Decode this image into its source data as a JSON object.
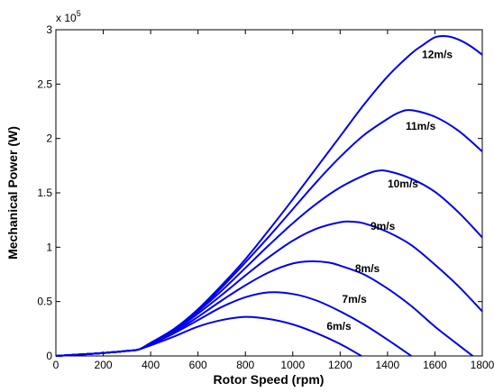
{
  "chart_data": {
    "type": "line",
    "xlabel": "Rotor Speed (rpm)",
    "ylabel": "Mechanical Power (W)",
    "y_multiplier_base": "x 10",
    "y_multiplier_exp": "5",
    "xlim": [
      0,
      1800
    ],
    "ylim": [
      0,
      3
    ],
    "x_ticks": [
      0,
      200,
      400,
      600,
      800,
      1000,
      1200,
      1400,
      1600,
      1800
    ],
    "y_ticks": [
      0,
      0.5,
      1,
      1.5,
      2,
      2.5,
      3
    ],
    "y_tick_labels": [
      "0",
      "0.5",
      "1",
      "1.5",
      "2",
      "2.5",
      "3"
    ],
    "grid": false,
    "line_color": "#0000ee",
    "series": [
      {
        "name": "6m/s",
        "label_at": [
          1195,
          0.24
        ],
        "points": [
          [
            0,
            0
          ],
          [
            100,
            0.013
          ],
          [
            200,
            0.027
          ],
          [
            300,
            0.046
          ],
          [
            350,
            0.06
          ],
          [
            400,
            0.097
          ],
          [
            500,
            0.18
          ],
          [
            600,
            0.27
          ],
          [
            700,
            0.33
          ],
          [
            800,
            0.36
          ],
          [
            900,
            0.34
          ],
          [
            1000,
            0.29
          ],
          [
            1100,
            0.21
          ],
          [
            1200,
            0.11
          ],
          [
            1290,
            0
          ]
        ]
      },
      {
        "name": "7m/s",
        "label_at": [
          1260,
          0.49
        ],
        "points": [
          [
            0,
            0
          ],
          [
            100,
            0.013
          ],
          [
            200,
            0.027
          ],
          [
            300,
            0.046
          ],
          [
            350,
            0.06
          ],
          [
            400,
            0.105
          ],
          [
            500,
            0.21
          ],
          [
            600,
            0.33
          ],
          [
            700,
            0.45
          ],
          [
            800,
            0.54
          ],
          [
            900,
            0.585
          ],
          [
            1000,
            0.57
          ],
          [
            1100,
            0.51
          ],
          [
            1200,
            0.41
          ],
          [
            1300,
            0.29
          ],
          [
            1400,
            0.15
          ],
          [
            1500,
            0
          ]
        ]
      },
      {
        "name": "8m/s",
        "label_at": [
          1315,
          0.77
        ],
        "points": [
          [
            0,
            0
          ],
          [
            100,
            0.013
          ],
          [
            200,
            0.027
          ],
          [
            300,
            0.046
          ],
          [
            350,
            0.06
          ],
          [
            400,
            0.11
          ],
          [
            500,
            0.22
          ],
          [
            600,
            0.36
          ],
          [
            700,
            0.51
          ],
          [
            800,
            0.65
          ],
          [
            900,
            0.77
          ],
          [
            1000,
            0.85
          ],
          [
            1075,
            0.87
          ],
          [
            1150,
            0.86
          ],
          [
            1200,
            0.83
          ],
          [
            1300,
            0.75
          ],
          [
            1400,
            0.62
          ],
          [
            1500,
            0.46
          ],
          [
            1600,
            0.27
          ],
          [
            1700,
            0.1
          ],
          [
            1760,
            0
          ]
        ]
      },
      {
        "name": "9m/s",
        "label_at": [
          1380,
          1.16
        ],
        "points": [
          [
            0,
            0
          ],
          [
            100,
            0.013
          ],
          [
            200,
            0.027
          ],
          [
            300,
            0.046
          ],
          [
            350,
            0.06
          ],
          [
            400,
            0.115
          ],
          [
            500,
            0.23
          ],
          [
            600,
            0.39
          ],
          [
            700,
            0.56
          ],
          [
            800,
            0.74
          ],
          [
            900,
            0.91
          ],
          [
            1000,
            1.06
          ],
          [
            1100,
            1.17
          ],
          [
            1200,
            1.23
          ],
          [
            1250,
            1.235
          ],
          [
            1300,
            1.22
          ],
          [
            1400,
            1.14
          ],
          [
            1500,
            1.02
          ],
          [
            1600,
            0.84
          ],
          [
            1700,
            0.64
          ],
          [
            1800,
            0.41
          ]
        ]
      },
      {
        "name": "10m/s",
        "label_at": [
          1465,
          1.55
        ],
        "points": [
          [
            0,
            0
          ],
          [
            100,
            0.013
          ],
          [
            200,
            0.027
          ],
          [
            300,
            0.046
          ],
          [
            350,
            0.06
          ],
          [
            400,
            0.115
          ],
          [
            500,
            0.24
          ],
          [
            600,
            0.41
          ],
          [
            700,
            0.6
          ],
          [
            800,
            0.81
          ],
          [
            900,
            1.02
          ],
          [
            1000,
            1.22
          ],
          [
            1100,
            1.4
          ],
          [
            1200,
            1.55
          ],
          [
            1300,
            1.66
          ],
          [
            1350,
            1.7
          ],
          [
            1400,
            1.7
          ],
          [
            1500,
            1.63
          ],
          [
            1600,
            1.51
          ],
          [
            1700,
            1.32
          ],
          [
            1800,
            1.09
          ]
        ]
      },
      {
        "name": "11m/s",
        "label_at": [
          1540,
          2.08
        ],
        "points": [
          [
            0,
            0
          ],
          [
            100,
            0.013
          ],
          [
            200,
            0.027
          ],
          [
            300,
            0.046
          ],
          [
            350,
            0.06
          ],
          [
            400,
            0.12
          ],
          [
            500,
            0.25
          ],
          [
            600,
            0.42
          ],
          [
            700,
            0.63
          ],
          [
            800,
            0.86
          ],
          [
            900,
            1.1
          ],
          [
            1000,
            1.35
          ],
          [
            1100,
            1.6
          ],
          [
            1200,
            1.83
          ],
          [
            1300,
            2.03
          ],
          [
            1400,
            2.18
          ],
          [
            1450,
            2.24
          ],
          [
            1500,
            2.26
          ],
          [
            1600,
            2.2
          ],
          [
            1700,
            2.07
          ],
          [
            1800,
            1.88
          ]
        ]
      },
      {
        "name": "12m/s",
        "label_at": [
          1610,
          2.74
        ],
        "points": [
          [
            0,
            0
          ],
          [
            100,
            0.013
          ],
          [
            200,
            0.027
          ],
          [
            300,
            0.046
          ],
          [
            350,
            0.06
          ],
          [
            400,
            0.12
          ],
          [
            500,
            0.25
          ],
          [
            600,
            0.43
          ],
          [
            700,
            0.65
          ],
          [
            800,
            0.89
          ],
          [
            900,
            1.16
          ],
          [
            1000,
            1.44
          ],
          [
            1100,
            1.73
          ],
          [
            1200,
            2.02
          ],
          [
            1300,
            2.31
          ],
          [
            1400,
            2.57
          ],
          [
            1500,
            2.78
          ],
          [
            1550,
            2.86
          ],
          [
            1600,
            2.93
          ],
          [
            1650,
            2.94
          ],
          [
            1700,
            2.91
          ],
          [
            1750,
            2.85
          ],
          [
            1800,
            2.77
          ]
        ]
      }
    ]
  }
}
